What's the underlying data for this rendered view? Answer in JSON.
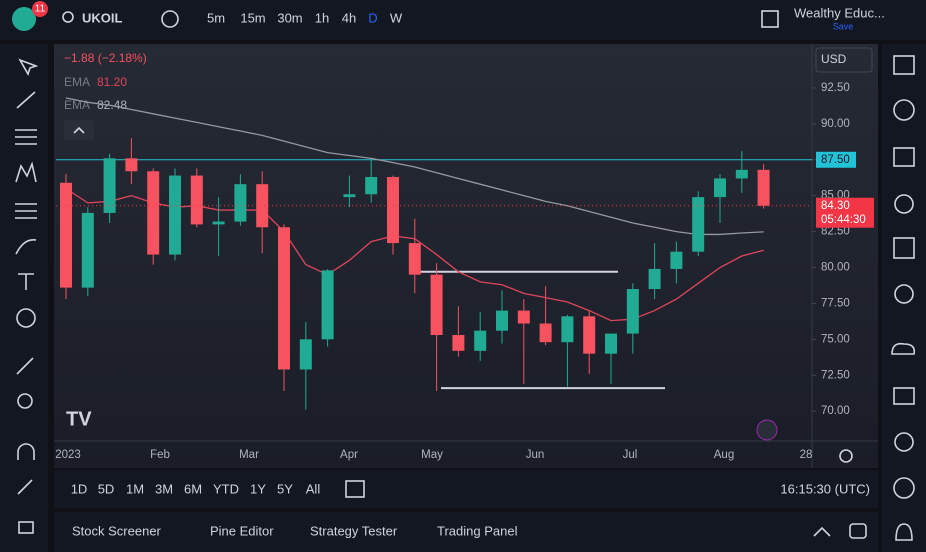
{
  "header": {
    "badge": "11",
    "symbol": "UKOIL",
    "intervals": [
      "5m",
      "15m",
      "30m",
      "1h",
      "4h",
      "D",
      "W"
    ],
    "active_interval": "D",
    "layout_name": "Wealthy Educ...",
    "save": "Save"
  },
  "legend": {
    "change": "−1.88 (−2.18%)",
    "ema_label": "EMA",
    "ema1_value": "81.20",
    "ema2_value": "82.48"
  },
  "currency": "USD",
  "chart_data": {
    "type": "candlestick",
    "ylim": [
      67.99,
      95.56
    ],
    "yticks": [
      {
        "value": 92.5,
        "label": "92.50"
      },
      {
        "value": 90,
        "label": "90.00"
      },
      {
        "value": 87.5,
        "label": "87.50"
      },
      {
        "value": 85,
        "label": "85.00"
      },
      {
        "value": 82.5,
        "label": "82.50"
      },
      {
        "value": 80,
        "label": "80.00"
      },
      {
        "value": 77.5,
        "label": "77.50"
      },
      {
        "value": 75,
        "label": "75.00"
      },
      {
        "value": 72.5,
        "label": "72.50"
      },
      {
        "value": 70,
        "label": "70.00"
      }
    ],
    "x_labels": [
      "2023",
      "Feb",
      "Mar",
      "Apr",
      "May",
      "Jun",
      "Jul",
      "Aug",
      "28"
    ],
    "up_color": "#22ab94",
    "down_color": "#f7525f",
    "candles": [
      [
        85.9,
        86.5,
        77.8,
        78.6
      ],
      [
        78.6,
        84.2,
        78.0,
        83.8
      ],
      [
        83.8,
        87.9,
        83.1,
        87.6
      ],
      [
        87.6,
        89.0,
        85.8,
        86.7
      ],
      [
        86.7,
        86.9,
        80.2,
        80.9
      ],
      [
        80.9,
        86.9,
        80.5,
        86.4
      ],
      [
        86.4,
        86.9,
        82.8,
        83.0
      ],
      [
        83.0,
        84.9,
        80.8,
        83.2
      ],
      [
        83.2,
        86.5,
        82.9,
        85.8
      ],
      [
        85.8,
        86.7,
        81.0,
        82.8
      ],
      [
        82.8,
        83.0,
        71.4,
        72.9
      ],
      [
        72.9,
        76.2,
        70.1,
        75.0
      ],
      [
        75.0,
        79.9,
        74.5,
        79.8
      ],
      [
        84.9,
        86.4,
        84.2,
        85.1
      ],
      [
        85.1,
        87.5,
        84.5,
        86.3
      ],
      [
        86.3,
        86.4,
        80.9,
        81.7
      ],
      [
        81.7,
        83.4,
        78.2,
        79.5
      ],
      [
        79.5,
        80.3,
        71.4,
        75.3
      ],
      [
        75.3,
        77.3,
        73.8,
        74.2
      ],
      [
        74.2,
        76.9,
        73.5,
        75.6
      ],
      [
        75.6,
        78.4,
        74.7,
        77.0
      ],
      [
        77.0,
        77.8,
        71.9,
        76.1
      ],
      [
        76.1,
        78.7,
        74.6,
        74.8
      ],
      [
        74.8,
        76.7,
        71.7,
        76.6
      ],
      [
        76.6,
        77.0,
        72.6,
        74.0
      ],
      [
        74.0,
        75.4,
        71.9,
        75.4
      ],
      [
        75.4,
        78.9,
        74.0,
        78.5
      ],
      [
        78.5,
        81.7,
        77.8,
        79.9
      ],
      [
        79.9,
        81.8,
        78.9,
        81.1
      ],
      [
        81.1,
        85.3,
        80.8,
        84.9
      ],
      [
        84.9,
        86.5,
        83.1,
        86.2
      ],
      [
        86.2,
        88.1,
        85.2,
        86.8
      ],
      [
        86.8,
        87.2,
        84.1,
        84.3
      ]
    ],
    "ema_series": [
      {
        "name": "EMA",
        "color": "#e0455a",
        "values": [
          85.5,
          84.5,
          84.6,
          85,
          84.5,
          84.2,
          84.3,
          84,
          84,
          84,
          82.5,
          80.2,
          79.5,
          80.5,
          81.8,
          82.2,
          82,
          80.9,
          79.7,
          79,
          78.8,
          78.2,
          77.9,
          77.6,
          77.0,
          76.3,
          76.4,
          77.0,
          77.8,
          78.9,
          80.0,
          80.8,
          81.2
        ]
      },
      {
        "name": "EMA",
        "color": "#9598a1",
        "values": [
          91.8,
          91.5,
          91.3,
          91.0,
          90.7,
          90.4,
          90.1,
          89.8,
          89.5,
          89.2,
          88.8,
          88.4,
          88.0,
          87.8,
          87.6,
          87.3,
          87.0,
          86.6,
          86.2,
          85.8,
          85.4,
          85.0,
          84.6,
          84.3,
          83.9,
          83.5,
          83.1,
          82.8,
          82.5,
          82.3,
          82.3,
          82.4,
          82.48
        ]
      }
    ],
    "resistance": {
      "value": 87.5,
      "label": "87.50",
      "color": "#22c3d6"
    },
    "range_top": 79.7,
    "range_bottom": 71.6,
    "last_price": {
      "value": 84.3,
      "label": "84.30",
      "countdown": "05:44:30",
      "color": "#f23645"
    }
  },
  "ranges": [
    "1D",
    "5D",
    "1M",
    "3M",
    "6M",
    "YTD",
    "1Y",
    "5Y",
    "All"
  ],
  "clock": "16:15:30 (UTC)",
  "tabs": [
    "Stock Screener",
    "Pine Editor",
    "Strategy Tester",
    "Trading Panel"
  ]
}
